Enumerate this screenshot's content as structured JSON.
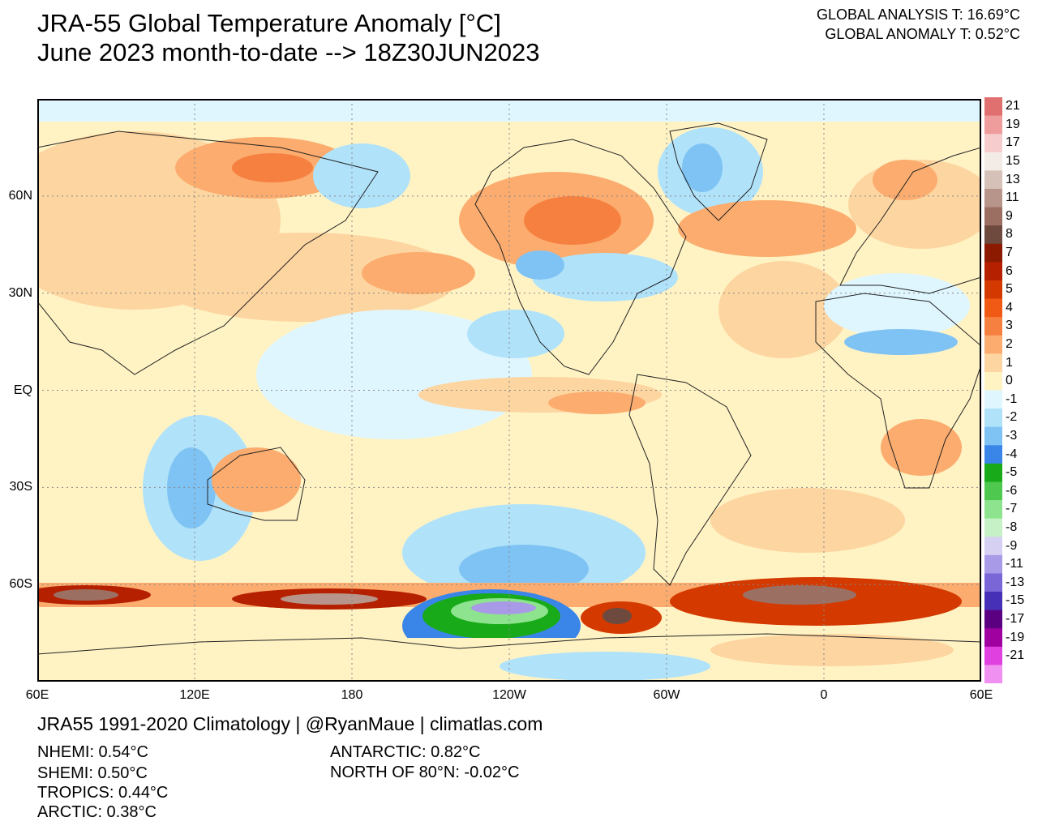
{
  "title": {
    "line1": "JRA-55 Global Temperature Anomaly [°C]",
    "line2": "June 2023 month-to-date --> 18Z30JUN2023"
  },
  "global": {
    "analysis": "GLOBAL ANALYSIS T: 16.69°C",
    "anomaly": "GLOBAL ANOMALY T: 0.52°C"
  },
  "map": {
    "projection": "equirectangular",
    "lon_range": [
      60,
      420
    ],
    "lat_range": [
      -90,
      90
    ],
    "lat_labels": [
      {
        "text": "60N",
        "lat": 60
      },
      {
        "text": "30N",
        "lat": 30
      },
      {
        "text": "EQ",
        "lat": 0
      },
      {
        "text": "30S",
        "lat": -30
      },
      {
        "text": "60S",
        "lat": -60
      }
    ],
    "lon_labels": [
      {
        "text": "60E",
        "lon": 60
      },
      {
        "text": "120E",
        "lon": 120
      },
      {
        "text": "180",
        "lon": 180
      },
      {
        "text": "120W",
        "lon": 240
      },
      {
        "text": "60W",
        "lon": 300
      },
      {
        "text": "0",
        "lon": 360
      },
      {
        "text": "60E",
        "lon": 420
      }
    ]
  },
  "colorbar": {
    "levels": [
      "21",
      "19",
      "17",
      "15",
      "13",
      "11",
      "9",
      "8",
      "7",
      "6",
      "5",
      "4",
      "3",
      "2",
      "1",
      "0",
      "-1",
      "-2",
      "-3",
      "-4",
      "-5",
      "-6",
      "-7",
      "-8",
      "-9",
      "-11",
      "-13",
      "-15",
      "-17",
      "-19",
      "-21"
    ],
    "colors": [
      "#e07070",
      "#ee9c9c",
      "#f6cccc",
      "#f3ebe6",
      "#d6c1b8",
      "#b8958a",
      "#9b7063",
      "#6e4a3e",
      "#8c1a00",
      "#b52000",
      "#d43a00",
      "#f05a14",
      "#f68040",
      "#fbac6e",
      "#fdd5a0",
      "#fff3c4",
      "#dff6ff",
      "#b0e2fa",
      "#7fc3f4",
      "#3a86e8",
      "#18aa18",
      "#4ec84e",
      "#8ee48e",
      "#c6f0c6",
      "#d6d0f2",
      "#a89ae6",
      "#7a66d6",
      "#4630b8",
      "#5a0080",
      "#a000a0",
      "#e040e0",
      "#f090f0"
    ]
  },
  "footer": {
    "title": "JRA55 1991-2020 Climatology | @RyanMaue | climatlas.com",
    "stats": {
      "nhemi": "NHEMI: 0.54°C",
      "shemi": "SHEMI: 0.50°C",
      "tropics": "TROPICS: 0.44°C",
      "arctic": "ARCTIC: 0.38°C",
      "antarctic": "ANTARCTIC: 0.82°C",
      "north80": "NORTH OF 80°N: -0.02°C"
    }
  }
}
